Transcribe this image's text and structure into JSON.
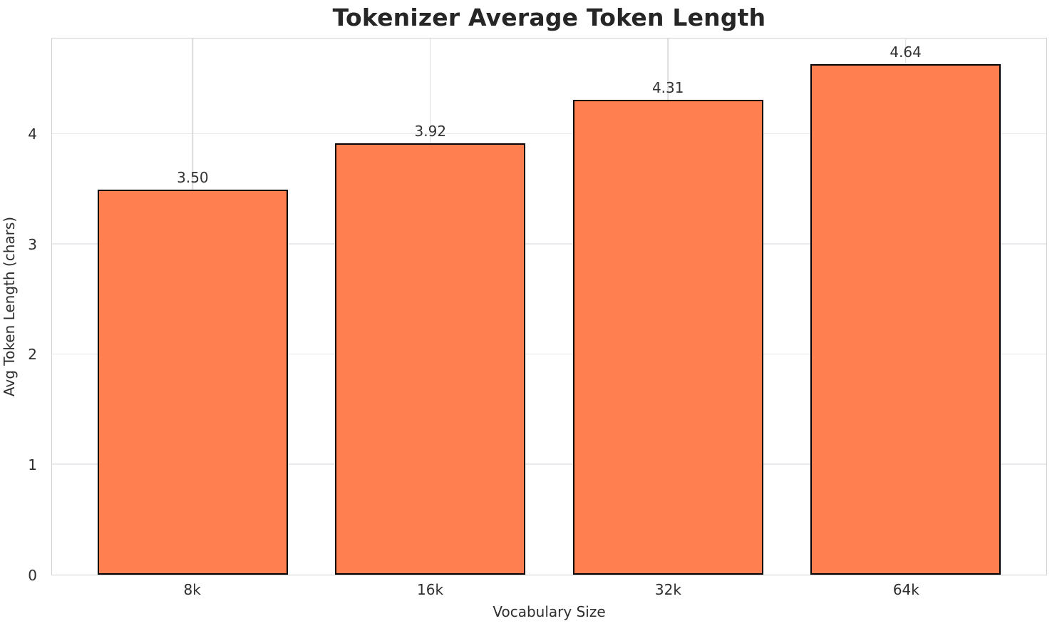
{
  "chart_data": {
    "type": "bar",
    "title": "Tokenizer Average Token Length",
    "xlabel": "Vocabulary Size",
    "ylabel": "Avg Token Length (chars)",
    "categories": [
      "8k",
      "16k",
      "32k",
      "64k"
    ],
    "values": [
      3.5,
      3.92,
      4.31,
      4.64
    ],
    "value_labels": [
      "3.50",
      "3.92",
      "4.31",
      "4.64"
    ],
    "yticks": [
      0,
      1,
      2,
      3,
      4
    ],
    "ytick_labels": [
      "0",
      "1",
      "2",
      "3",
      "4"
    ],
    "ylim": [
      0,
      4.87
    ],
    "grid": true,
    "legend_position": "none",
    "colors": {
      "bar_fill": "#FF7F50",
      "bar_edge": "#000000",
      "grid_horizontal": "#e9e9ed",
      "grid_vertical": "#dcdcdf",
      "spine": "#d2d2d2",
      "title_text": "#262626",
      "tick_text": "#2e2e2e",
      "value_label_text": "#333333"
    }
  }
}
